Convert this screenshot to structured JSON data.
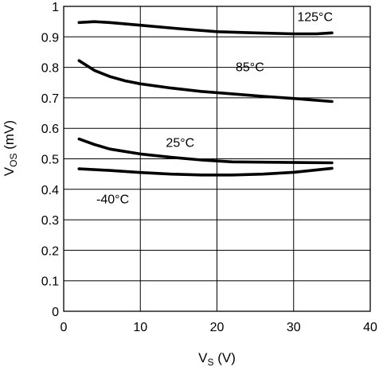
{
  "chart_data": {
    "type": "line",
    "title": "",
    "xlabel": {
      "main": "V",
      "sub": "S",
      "unit": " (V)"
    },
    "ylabel": {
      "main": "V",
      "sub": "OS",
      "unit": " (mV)"
    },
    "xlim": [
      0,
      40
    ],
    "ylim": [
      0,
      1
    ],
    "xticks": [
      0,
      10,
      20,
      30,
      40
    ],
    "xtick_labels": [
      "0",
      "10",
      "20",
      "30",
      "40"
    ],
    "yticks": [
      0,
      0.1,
      0.2,
      0.3,
      0.4,
      0.5,
      0.6,
      0.7,
      0.8,
      0.9,
      1
    ],
    "ytick_labels": [
      "0",
      "0.1",
      "0.2",
      "0.3",
      "0.4",
      "0.5",
      "0.6",
      "0.7",
      "0.8",
      "0.9",
      "1"
    ],
    "grid": true,
    "legend": "none",
    "line_color": "#000000",
    "series": [
      {
        "name": "125°C",
        "x": [
          2,
          4,
          6,
          10,
          15,
          20,
          25,
          30,
          33,
          35
        ],
        "y": [
          0.947,
          0.95,
          0.947,
          0.938,
          0.927,
          0.917,
          0.913,
          0.91,
          0.91,
          0.913
        ]
      },
      {
        "name": "85°C",
        "x": [
          2,
          4,
          6,
          8,
          10,
          14,
          18,
          22,
          26,
          30,
          35
        ],
        "y": [
          0.822,
          0.79,
          0.77,
          0.756,
          0.746,
          0.732,
          0.721,
          0.713,
          0.705,
          0.698,
          0.688
        ]
      },
      {
        "name": "25°C",
        "x": [
          2,
          4,
          6,
          8,
          10,
          14,
          18,
          22,
          26,
          30,
          35
        ],
        "y": [
          0.565,
          0.547,
          0.532,
          0.524,
          0.516,
          0.505,
          0.496,
          0.49,
          0.489,
          0.488,
          0.487
        ]
      },
      {
        "name": "-40°C",
        "x": [
          2,
          6,
          10,
          14,
          18,
          20,
          22,
          26,
          30,
          35
        ],
        "y": [
          0.467,
          0.462,
          0.455,
          0.45,
          0.447,
          0.447,
          0.447,
          0.45,
          0.456,
          0.469
        ]
      }
    ]
  }
}
